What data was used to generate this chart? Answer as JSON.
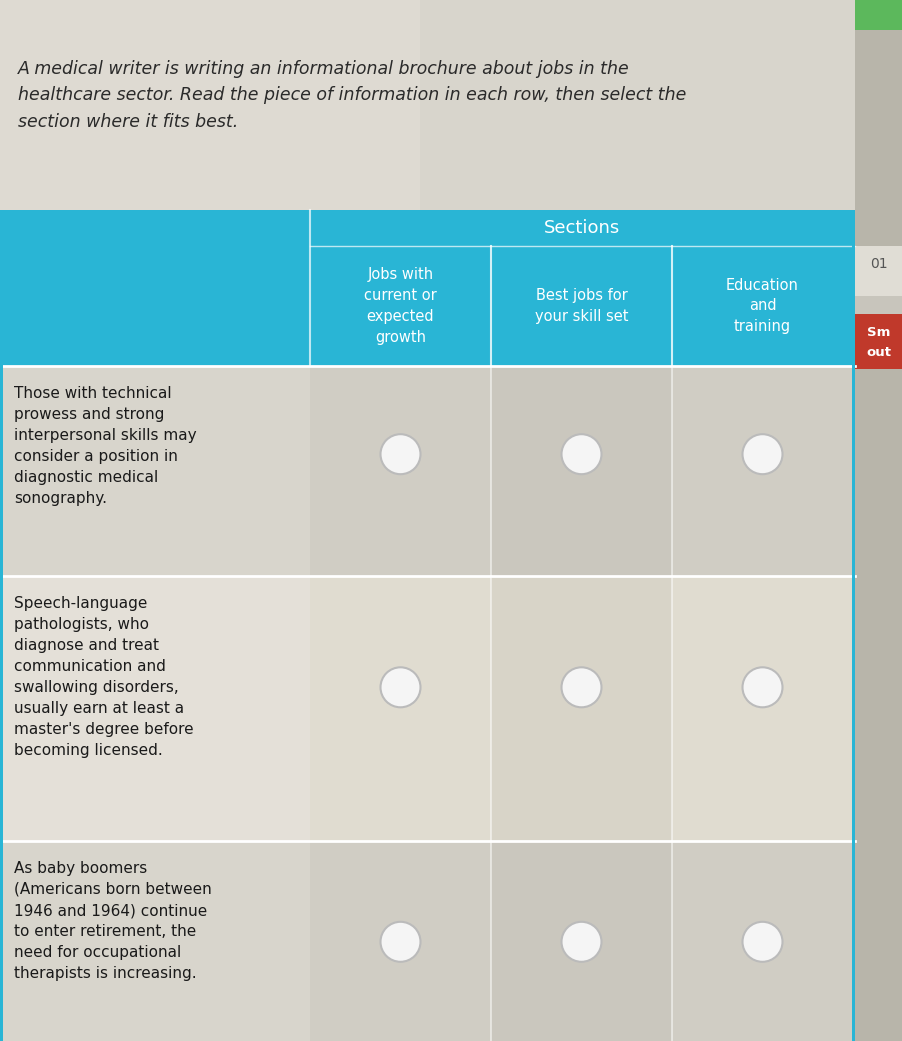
{
  "title_text": "A medical writer is writing an informational brochure about jobs in the\nhealthcare sector. Read the piece of information in each row, then select the\nsection where it fits best.",
  "sections_label": "Sections",
  "col_headers": [
    "Jobs with\ncurrent or\nexpected\ngrowth",
    "Best jobs for\nyour skill set",
    "Education\nand\ntraining"
  ],
  "rows": [
    "Those with technical\nprowess and strong\ninterpersonal skills may\nconsider a position in\ndiagnostic medical\nsonography.",
    "Speech-language\npathologists, who\ndiagnose and treat\ncommunication and\nswallowing disorders,\nusually earn at least a\nmaster's degree before\nbecoming licensed.",
    "As baby boomers\n(Americans born between\n1946 and 1964) continue\nto enter retirement, the\nneed for occupational\ntherapists is increasing."
  ],
  "header_bg": "#29b5d5",
  "header_text_color": "#ffffff",
  "row1_bg": "#dcdcdc",
  "row2_bg": "#e8e4dc",
  "row3_bg": "#dcdcdc",
  "cell1_bg": "#dcdcdc",
  "cell2_bg": "#e8e4dc",
  "cell3_bg": "#dcdcdc",
  "circle_color": "#f5f5f5",
  "circle_edge": "#bbbbbb",
  "title_bg": "#d8d5cc",
  "fig_bg": "#b8b5aa",
  "green_tab": "#5cb85c",
  "right_bg": "#cccccc",
  "red_tab": "#c0392b",
  "sidebar_bg": "#e0ddd5"
}
